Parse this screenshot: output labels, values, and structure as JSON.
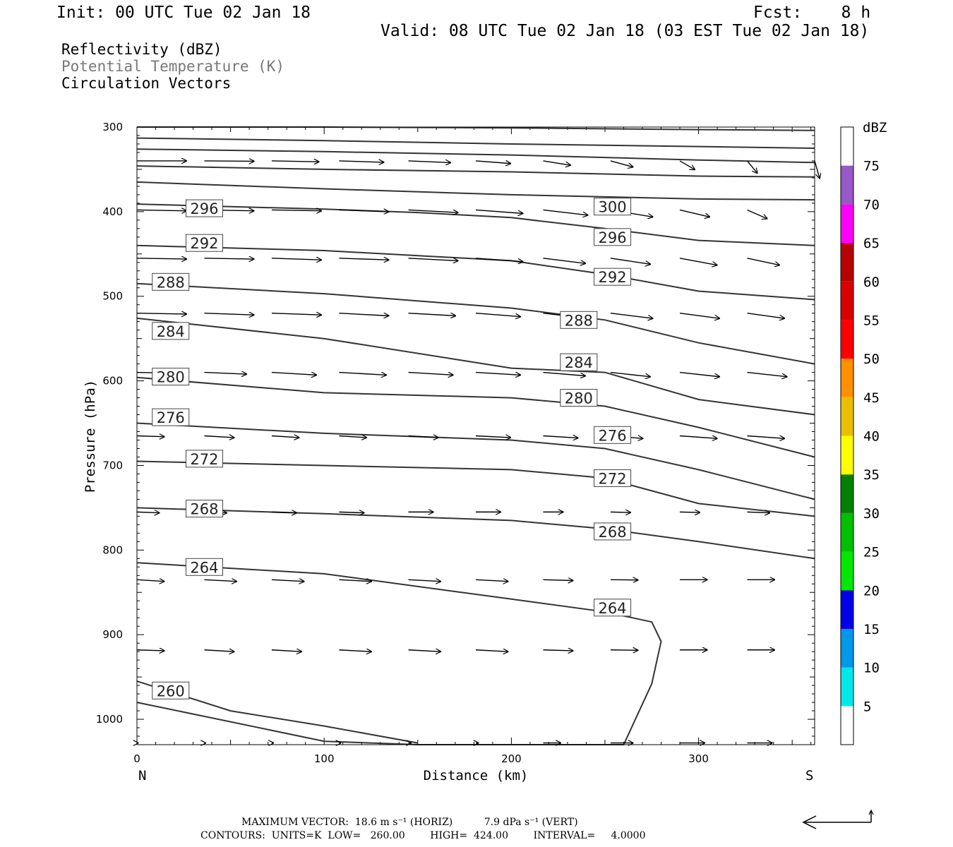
{
  "header": {
    "init": "Init: 00 UTC Tue 02 Jan 18",
    "fcst": "Fcst:    8 h",
    "valid": "Valid: 08 UTC Tue 02 Jan 18 (03 EST Tue 02 Jan 18)"
  },
  "fields": {
    "reflectivity": "Reflectivity (dBZ)",
    "theta": "Potential Temperature (K)",
    "vectors": "Circulation Vectors"
  },
  "footer": {
    "max_vector_line": "MAXIMUM VECTOR:  18.6 m s⁻¹ (HORIZ)          7.9 dPa s⁻¹ (VERT)",
    "contours_line": "CONTOURS:  UNITS=K  LOW=   260.00        HIGH=  424.00        INTERVAL=     4.0000"
  },
  "colors": {
    "contour": "#333333",
    "dbz": [
      "#00e8e8",
      "#0098e8",
      "#0000e8",
      "#00e800",
      "#00c000",
      "#008000",
      "#ffff00",
      "#e8c000",
      "#ff9000",
      "#ff0000",
      "#d80000",
      "#b80000",
      "#ff00ff",
      "#9858c8"
    ]
  },
  "chart_data": {
    "type": "cross-section",
    "xlabel": "Distance (km)",
    "ylabel": "Pressure (hPa)",
    "xlim": [
      0,
      362
    ],
    "ylim": [
      1030,
      300
    ],
    "xticks": [
      0,
      100,
      200,
      300
    ],
    "yticks": [
      300,
      400,
      500,
      600,
      700,
      800,
      900,
      1000
    ],
    "x_end_labels": {
      "left": "N",
      "right": "S"
    },
    "colorbar": {
      "title": "dBZ",
      "levels": [
        5,
        10,
        15,
        20,
        25,
        30,
        35,
        40,
        45,
        50,
        55,
        60,
        65,
        70,
        75
      ]
    },
    "contour_lines": [
      {
        "x": [
          0,
          100,
          200,
          300,
          362
        ],
        "p": [
          300,
          300,
          301,
          303,
          304
        ]
      },
      {
        "x": [
          0,
          100,
          200,
          300,
          362
        ],
        "p": [
          313,
          316,
          320,
          323,
          325
        ]
      },
      {
        "x": [
          0,
          100,
          200,
          300,
          362
        ],
        "p": [
          326,
          329,
          333,
          339,
          342
        ]
      },
      {
        "x": [
          0,
          100,
          200,
          300,
          362
        ],
        "p": [
          346,
          350,
          353,
          358,
          359
        ]
      },
      {
        "x": [
          0,
          100,
          200,
          300,
          362
        ],
        "p": [
          365,
          373,
          380,
          385,
          386
        ]
      },
      {
        "x": [
          0,
          50,
          100,
          150,
          200,
          250,
          300,
          362
        ],
        "p": [
          391,
          394,
          397,
          401,
          407,
          420,
          434,
          440
        ]
      },
      {
        "x": [
          0,
          100,
          200,
          250,
          300,
          362
        ],
        "p": [
          440,
          446,
          458,
          474,
          494,
          504
        ]
      },
      {
        "x": [
          0,
          100,
          200,
          250,
          300,
          362
        ],
        "p": [
          485,
          497,
          514,
          528,
          555,
          580
        ]
      },
      {
        "x": [
          0,
          100,
          200,
          250,
          300,
          362
        ],
        "p": [
          526,
          550,
          585,
          590,
          622,
          640
        ]
      },
      {
        "x": [
          0,
          100,
          200,
          250,
          300,
          362
        ],
        "p": [
          596,
          614,
          620,
          630,
          655,
          690
        ]
      },
      {
        "x": [
          0,
          100,
          200,
          250,
          300,
          362
        ],
        "p": [
          650,
          662,
          670,
          680,
          705,
          740
        ]
      },
      {
        "x": [
          0,
          100,
          200,
          250,
          300,
          362
        ],
        "p": [
          695,
          700,
          705,
          715,
          745,
          760
        ]
      },
      {
        "x": [
          0,
          100,
          200,
          250,
          300,
          362
        ],
        "p": [
          750,
          757,
          765,
          775,
          790,
          810
        ]
      },
      {
        "x": [
          0,
          100,
          200,
          250,
          275,
          280,
          275,
          260,
          150,
          100,
          0
        ],
        "p": [
          815,
          828,
          858,
          873,
          885,
          908,
          958,
          1030,
          1030,
          1026,
          980
        ]
      },
      {
        "x": [
          0,
          50,
          100,
          150
        ],
        "p": [
          955,
          990,
          1008,
          1028
        ]
      }
    ],
    "contour_labels": [
      {
        "text": "296",
        "x": 36,
        "p": 396
      },
      {
        "text": "300",
        "x": 254,
        "p": 394
      },
      {
        "text": "292",
        "x": 36,
        "p": 437
      },
      {
        "text": "296",
        "x": 254,
        "p": 430
      },
      {
        "text": "288",
        "x": 18,
        "p": 483
      },
      {
        "text": "292",
        "x": 254,
        "p": 477
      },
      {
        "text": "284",
        "x": 18,
        "p": 541
      },
      {
        "text": "288",
        "x": 236,
        "p": 528
      },
      {
        "text": "280",
        "x": 18,
        "p": 595
      },
      {
        "text": "284",
        "x": 236,
        "p": 578
      },
      {
        "text": "276",
        "x": 18,
        "p": 643
      },
      {
        "text": "280",
        "x": 236,
        "p": 620
      },
      {
        "text": "272",
        "x": 36,
        "p": 692
      },
      {
        "text": "276",
        "x": 254,
        "p": 664
      },
      {
        "text": "268",
        "x": 36,
        "p": 751
      },
      {
        "text": "272",
        "x": 254,
        "p": 715
      },
      {
        "text": "264",
        "x": 36,
        "p": 820
      },
      {
        "text": "268",
        "x": 254,
        "p": 778
      },
      {
        "text": "260",
        "x": 18,
        "p": 966
      },
      {
        "text": "264",
        "x": 254,
        "p": 868
      }
    ],
    "vector_rows": [
      {
        "p": 340,
        "x": [
          0,
          36,
          72,
          108,
          145,
          181,
          217,
          253,
          290,
          326,
          362
        ],
        "u": [
          1.0,
          1.0,
          0.95,
          0.9,
          0.85,
          0.7,
          0.55,
          0.45,
          0.3,
          0.2,
          0.1
        ],
        "v": [
          0,
          0.02,
          0.05,
          0.08,
          0.1,
          0.15,
          0.25,
          0.35,
          0.5,
          0.7,
          1.0
        ]
      },
      {
        "p": 398,
        "x": [
          0,
          36,
          72,
          108,
          145,
          181,
          217,
          253,
          290,
          326
        ],
        "u": [
          1.0,
          1.0,
          1.0,
          1.0,
          1.0,
          0.95,
          0.9,
          0.85,
          0.6,
          0.4
        ],
        "v": [
          0.05,
          0.05,
          0.05,
          0.1,
          0.15,
          0.2,
          0.3,
          0.4,
          0.4,
          0.5
        ]
      },
      {
        "p": 455,
        "x": [
          0,
          36,
          72,
          108,
          145,
          181,
          217,
          253,
          290,
          326
        ],
        "u": [
          1.0,
          1.0,
          1.0,
          1.0,
          1.0,
          0.95,
          0.85,
          0.8,
          0.75,
          0.65
        ],
        "v": [
          0.05,
          0.05,
          0.1,
          0.1,
          0.15,
          0.2,
          0.3,
          0.35,
          0.4,
          0.4
        ]
      },
      {
        "p": 520,
        "x": [
          0,
          36,
          72,
          108,
          145,
          181,
          217,
          253,
          290,
          326
        ],
        "u": [
          1.0,
          1.0,
          1.0,
          1.0,
          0.95,
          0.9,
          0.9,
          0.85,
          0.8,
          0.75
        ],
        "v": [
          0.05,
          0.1,
          0.1,
          0.15,
          0.15,
          0.2,
          0.3,
          0.3,
          0.3,
          0.3
        ]
      },
      {
        "p": 590,
        "x": [
          0,
          36,
          72,
          108,
          145,
          181,
          217,
          253,
          290,
          326
        ],
        "u": [
          0.8,
          0.85,
          0.9,
          0.95,
          0.9,
          0.9,
          0.85,
          0.8,
          0.8,
          0.8
        ],
        "v": [
          0.05,
          0.1,
          0.15,
          0.15,
          0.15,
          0.15,
          0.2,
          0.25,
          0.25,
          0.25
        ]
      },
      {
        "p": 665,
        "x": [
          0,
          36,
          72,
          108,
          145,
          181,
          217,
          253,
          290,
          326
        ],
        "u": [
          0.55,
          0.6,
          0.55,
          0.55,
          0.6,
          0.7,
          0.7,
          0.65,
          0.75,
          0.75
        ],
        "v": [
          0.05,
          0.1,
          0.1,
          0.1,
          0.1,
          0.1,
          0.12,
          0.15,
          0.15,
          0.15
        ]
      },
      {
        "p": 755,
        "x": [
          0,
          36,
          72,
          108,
          145,
          181,
          217,
          253,
          290,
          326
        ],
        "u": [
          0.45,
          0.45,
          0.5,
          0.5,
          0.5,
          0.5,
          0.4,
          0.4,
          0.4,
          0.45
        ],
        "v": [
          0.05,
          0.05,
          0.05,
          0.05,
          0.0,
          0.0,
          0.0,
          0.03,
          0.03,
          0.05
        ]
      },
      {
        "p": 835,
        "x": [
          0,
          36,
          72,
          108,
          145,
          181,
          217,
          253,
          290,
          326
        ],
        "u": [
          0.55,
          0.65,
          0.65,
          0.65,
          0.65,
          0.65,
          0.6,
          0.55,
          0.55,
          0.55
        ],
        "v": [
          0.1,
          0.1,
          0.1,
          0.1,
          0.1,
          0.1,
          0.05,
          0.02,
          0.0,
          0.0
        ]
      },
      {
        "p": 918,
        "x": [
          0,
          36,
          72,
          108,
          145,
          181,
          217,
          253,
          290,
          326
        ],
        "u": [
          0.55,
          0.6,
          0.6,
          0.65,
          0.65,
          0.65,
          0.6,
          0.55,
          0.55,
          0.55
        ],
        "v": [
          0.05,
          0.1,
          0.1,
          0.1,
          0.1,
          0.1,
          0.05,
          0.02,
          0.0,
          0.0
        ]
      },
      {
        "p": 1028,
        "x": [
          0,
          36,
          72,
          108,
          145,
          181,
          217,
          253,
          290,
          326
        ],
        "u": [
          0.02,
          0.02,
          0.03,
          0.03,
          0.05,
          0.05,
          0.35,
          0.45,
          0.5,
          0.5
        ],
        "v": [
          0,
          0,
          0,
          0,
          0,
          0,
          0,
          0,
          0,
          0
        ]
      }
    ]
  }
}
